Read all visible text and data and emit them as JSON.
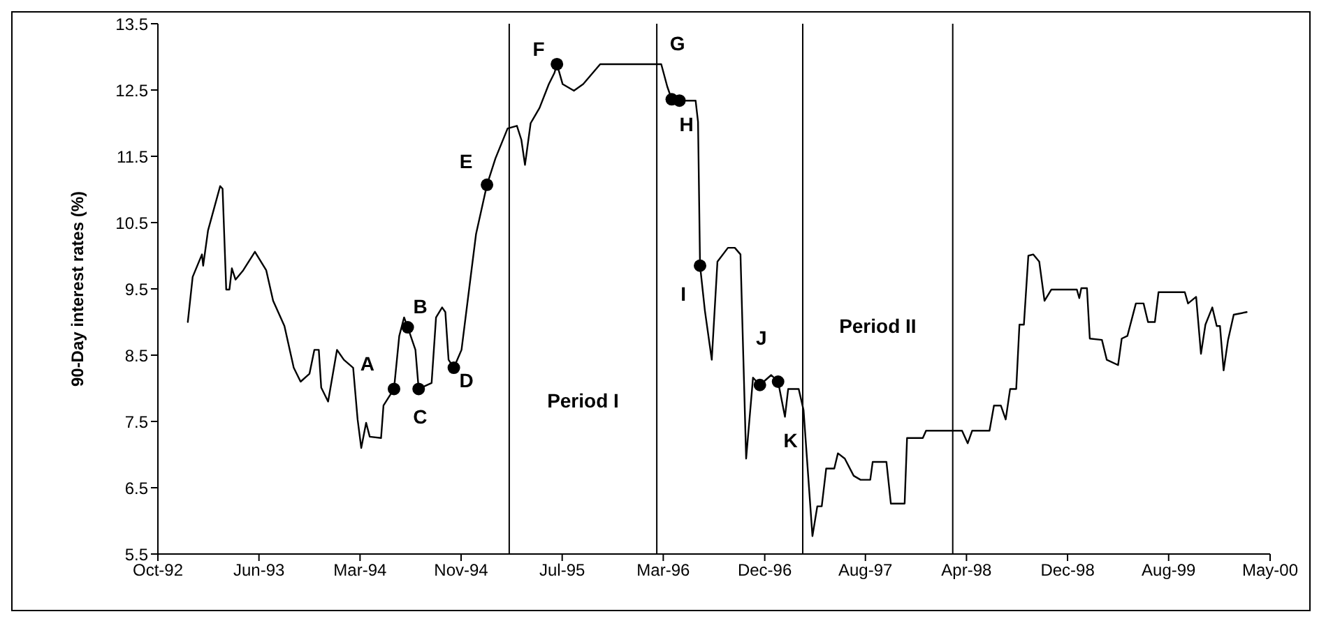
{
  "chart_data": {
    "type": "line",
    "ylabel": "90-Day interest rates (%)",
    "xlim": [
      "1992-10-22",
      "2000-05-04"
    ],
    "xticks": [
      {
        "value": "1992-10-22",
        "label": "Oct-92"
      },
      {
        "value": "1993-06-29",
        "label": "Jun-93"
      },
      {
        "value": "1994-03-06",
        "label": "Mar-94"
      },
      {
        "value": "1994-11-11",
        "label": "Nov-94"
      },
      {
        "value": "1995-07-19",
        "label": "Jul-95"
      },
      {
        "value": "1996-03-25",
        "label": "Mar-96"
      },
      {
        "value": "1996-12-01",
        "label": "Dec-96"
      },
      {
        "value": "1997-08-07",
        "label": "Aug-97"
      },
      {
        "value": "1998-04-14",
        "label": "Apr-98"
      },
      {
        "value": "1998-12-20",
        "label": "Dec-98"
      },
      {
        "value": "1999-08-27",
        "label": "Aug-99"
      },
      {
        "value": "2000-05-04",
        "label": "May-00"
      }
    ],
    "ylim": [
      5.5,
      13.5
    ],
    "yticks": [
      5.5,
      6.5,
      7.5,
      8.5,
      9.5,
      10.5,
      11.5,
      12.5,
      13.5
    ],
    "series": [
      {
        "color": "#000000",
        "x": [
          "1993-01-04",
          "1993-01-16",
          "1993-02-08",
          "1993-02-11",
          "1993-02-23",
          "1993-03-25",
          "1993-03-31",
          "1993-04-09",
          "1993-04-17",
          "1993-04-23",
          "1993-05-02",
          "1993-05-21",
          "1993-06-19",
          "1993-07-17",
          "1993-08-03",
          "1993-08-31",
          "1993-09-23",
          "1993-10-10",
          "1993-11-01",
          "1993-11-13",
          "1993-11-24",
          "1993-11-30",
          "1993-12-17",
          "1994-01-08",
          "1994-01-25",
          "1994-02-17",
          "1994-02-28",
          "1994-03-09",
          "1994-03-21",
          "1994-03-30",
          "1994-04-27",
          "1994-05-03",
          "1994-05-29",
          "1994-06-11",
          "1994-06-23",
          "1994-07-02",
          "1994-07-21",
          "1994-07-29",
          "1994-08-30",
          "1994-09-10",
          "1994-09-25",
          "1994-10-03",
          "1994-10-11",
          "1994-10-24",
          "1994-11-12",
          "1994-12-05",
          "1994-12-18",
          "1995-01-14",
          "1995-02-04",
          "1995-03-06",
          "1995-03-29",
          "1995-04-09",
          "1995-04-18",
          "1995-05-02",
          "1995-05-24",
          "1995-06-16",
          "1995-06-30",
          "1995-07-06",
          "1995-07-20",
          "1995-08-17",
          "1995-09-09",
          "1995-10-21",
          "1996-03-20",
          "1996-04-04",
          "1996-04-15",
          "1996-05-04",
          "1996-06-13",
          "1996-06-19",
          "1996-06-24",
          "1996-07-06",
          "1996-07-23",
          "1996-08-06",
          "1996-09-01",
          "1996-09-18",
          "1996-10-02",
          "1996-10-16",
          "1996-11-02",
          "1996-11-19",
          "1996-12-17",
          "1997-01-03",
          "1997-01-20",
          "1997-01-28",
          "1997-02-23",
          "1997-03-07",
          "1997-03-29",
          "1997-04-10",
          "1997-04-21",
          "1997-05-02",
          "1997-05-22",
          "1997-05-31",
          "1997-06-17",
          "1997-07-09",
          "1997-07-26",
          "1997-08-19",
          "1997-08-25",
          "1997-09-28",
          "1997-10-09",
          "1997-11-12",
          "1997-11-18",
          "1997-12-27",
          "1998-01-04",
          "1998-04-03",
          "1998-04-17",
          "1998-04-28",
          "1998-06-10",
          "1998-06-21",
          "1998-07-08",
          "1998-07-20",
          "1998-07-31",
          "1998-08-15",
          "1998-08-23",
          "1998-09-03",
          "1998-09-14",
          "1998-09-26",
          "1998-10-11",
          "1998-10-24",
          "1998-11-10",
          "1998-12-09",
          "1999-01-12",
          "1999-01-18",
          "1999-01-23",
          "1999-02-06",
          "1999-02-13",
          "1999-03-15",
          "1999-03-27",
          "1999-04-24",
          "1999-05-03",
          "1999-05-17",
          "1999-06-07",
          "1999-06-26",
          "1999-07-07",
          "1999-07-24",
          "1999-08-02",
          "1999-10-06",
          "1999-10-14",
          "1999-11-03",
          "1999-11-15",
          "1999-11-26",
          "1999-12-13",
          "1999-12-24",
          "2000-01-01",
          "2000-01-10",
          "2000-01-21",
          "2000-02-04",
          "2000-03-07"
        ],
        "values": [
          9.0,
          9.68,
          10.02,
          9.85,
          10.38,
          11.05,
          11.01,
          9.49,
          9.49,
          9.81,
          9.64,
          9.78,
          10.06,
          9.78,
          9.32,
          8.94,
          8.31,
          8.1,
          8.22,
          8.58,
          8.58,
          8.01,
          7.8,
          8.58,
          8.43,
          8.31,
          7.53,
          7.1,
          7.48,
          7.27,
          7.25,
          7.74,
          7.99,
          8.79,
          9.07,
          8.92,
          8.58,
          7.99,
          8.08,
          9.07,
          9.22,
          9.15,
          8.43,
          8.31,
          8.58,
          9.7,
          10.33,
          11.07,
          11.47,
          11.92,
          11.96,
          11.75,
          11.37,
          12.0,
          12.23,
          12.59,
          12.76,
          12.89,
          12.59,
          12.49,
          12.59,
          12.89,
          12.89,
          12.55,
          12.36,
          12.34,
          12.34,
          12.02,
          9.85,
          9.17,
          8.43,
          9.91,
          10.12,
          10.12,
          10.02,
          6.94,
          8.16,
          8.05,
          8.2,
          8.1,
          7.57,
          7.99,
          7.99,
          7.67,
          5.77,
          6.22,
          6.22,
          6.79,
          6.79,
          7.02,
          6.94,
          6.68,
          6.62,
          6.62,
          6.89,
          6.89,
          6.26,
          6.26,
          7.25,
          7.25,
          7.36,
          7.36,
          7.17,
          7.36,
          7.36,
          7.74,
          7.74,
          7.53,
          7.99,
          7.99,
          8.96,
          8.96,
          10.0,
          10.02,
          9.91,
          9.32,
          9.49,
          9.49,
          9.49,
          9.36,
          9.51,
          9.51,
          8.75,
          8.73,
          8.43,
          8.35,
          8.75,
          8.79,
          9.28,
          9.28,
          9.0,
          9.0,
          9.45,
          9.45,
          9.28,
          9.38,
          8.52,
          8.96,
          9.22,
          8.94,
          8.94,
          8.27,
          8.73,
          9.11,
          9.15
        ]
      },
      {
        "type": "scatter",
        "color": "#000000",
        "marker": "circle",
        "x": [
          "1994-05-29",
          "1994-07-02",
          "1994-07-29",
          "1994-10-24",
          "1995-01-14",
          "1995-07-06",
          "1996-04-15",
          "1996-05-04",
          "1996-06-24",
          "1996-11-19",
          "1997-01-03"
        ],
        "values": [
          7.99,
          8.92,
          7.99,
          8.31,
          11.07,
          12.89,
          12.36,
          12.34,
          9.85,
          8.05,
          8.1
        ]
      }
    ],
    "ref_lines": [
      {
        "axis": "x",
        "value": "1995-03-10",
        "color": "#000000"
      },
      {
        "axis": "x",
        "value": "1996-03-09",
        "color": "#000000"
      },
      {
        "axis": "x",
        "value": "1997-03-05",
        "color": "#000000"
      },
      {
        "axis": "x",
        "value": "1998-03-11",
        "color": "#000000"
      }
    ],
    "annotations": [
      {
        "text": "A",
        "x": "1994-05-29",
        "y": 7.99
      },
      {
        "text": "B",
        "x": "1994-07-02",
        "y": 8.92
      },
      {
        "text": "C",
        "x": "1994-07-29",
        "y": 7.99
      },
      {
        "text": "D",
        "x": "1994-10-24",
        "y": 8.31
      },
      {
        "text": "E",
        "x": "1995-01-14",
        "y": 11.07
      },
      {
        "text": "F",
        "x": "1995-07-06",
        "y": 12.89
      },
      {
        "text": "G",
        "x": "1996-04-15",
        "y": 12.36
      },
      {
        "text": "H",
        "x": "1996-05-04",
        "y": 12.34
      },
      {
        "text": "I",
        "x": "1996-06-24",
        "y": 9.85
      },
      {
        "text": "J",
        "x": "1996-11-19",
        "y": 8.05
      },
      {
        "text": "K",
        "x": "1997-01-03",
        "y": 8.1
      },
      "Period I",
      "Period II"
    ]
  }
}
